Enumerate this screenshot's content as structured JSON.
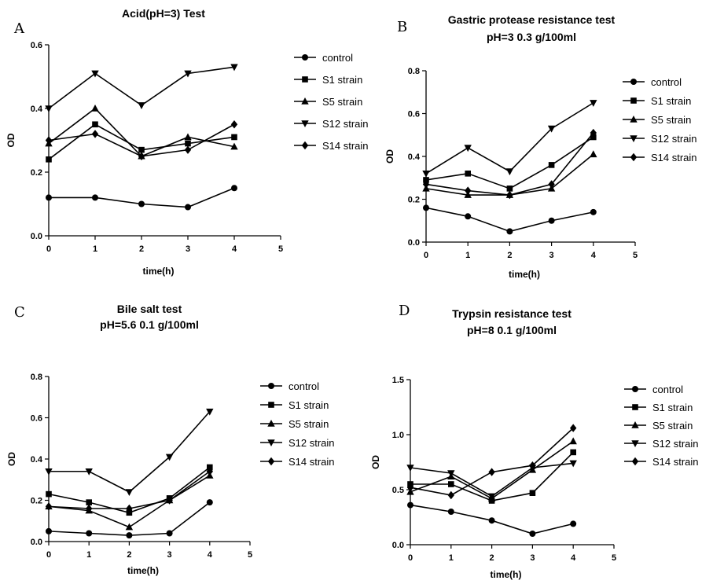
{
  "chart_data": [
    {
      "panel": "A",
      "type": "line",
      "title": [
        "Acid(pH=3) Test"
      ],
      "xlabel": "time(h)",
      "ylabel": "OD",
      "xlim": [
        0,
        5
      ],
      "ylim": [
        0,
        0.6
      ],
      "xticks": [
        0,
        1,
        2,
        3,
        4,
        5
      ],
      "xtick_labels": [
        "0",
        "1",
        "2",
        "3",
        "4",
        "5"
      ],
      "yticks": [
        0,
        0.2,
        0.4,
        0.6
      ],
      "ytick_labels": [
        "0.0",
        "0.2",
        "0.4",
        "0.6"
      ],
      "x": [
        0,
        1,
        2,
        3,
        4
      ],
      "series": [
        {
          "name": "control",
          "marker": "circle",
          "values": [
            0.12,
            0.12,
            0.1,
            0.09,
            0.15
          ]
        },
        {
          "name": "S1 strain",
          "marker": "square",
          "values": [
            0.24,
            0.35,
            0.27,
            0.29,
            0.31
          ]
        },
        {
          "name": "S5 strain",
          "marker": "triangle-up",
          "values": [
            0.29,
            0.4,
            0.25,
            0.31,
            0.28
          ]
        },
        {
          "name": "S12 strain",
          "marker": "triangle-down",
          "values": [
            0.4,
            0.51,
            0.41,
            0.51,
            0.53
          ]
        },
        {
          "name": "S14  strain",
          "marker": "diamond",
          "values": [
            0.3,
            0.32,
            0.25,
            0.27,
            0.35
          ]
        }
      ]
    },
    {
      "panel": "B",
      "type": "line",
      "title": [
        "Gastric protease resistance test",
        "pH=3 0.3 g/100ml"
      ],
      "xlabel": "time(h)",
      "ylabel": "OD",
      "xlim": [
        0,
        5
      ],
      "ylim": [
        0,
        0.8
      ],
      "xticks": [
        0,
        1,
        2,
        3,
        4,
        5
      ],
      "xtick_labels": [
        "0",
        "1",
        "2",
        "3",
        "4",
        "5"
      ],
      "yticks": [
        0,
        0.2,
        0.4,
        0.6,
        0.8
      ],
      "ytick_labels": [
        "0.0",
        "0.2",
        "0.4",
        "0.6",
        "0.8"
      ],
      "x": [
        0,
        1,
        2,
        3,
        4
      ],
      "series": [
        {
          "name": "control",
          "marker": "circle",
          "values": [
            0.16,
            0.12,
            0.05,
            0.1,
            0.14
          ]
        },
        {
          "name": "S1 strain",
          "marker": "square",
          "values": [
            0.29,
            0.32,
            0.25,
            0.36,
            0.49
          ]
        },
        {
          "name": "S5 strain",
          "marker": "triangle-up",
          "values": [
            0.25,
            0.22,
            0.22,
            0.25,
            0.41
          ]
        },
        {
          "name": "S12 strain",
          "marker": "triangle-down",
          "values": [
            0.32,
            0.44,
            0.33,
            0.53,
            0.65
          ]
        },
        {
          "name": "S14 strain",
          "marker": "diamond",
          "values": [
            0.27,
            0.24,
            0.22,
            0.27,
            0.51
          ]
        }
      ]
    },
    {
      "panel": "C",
      "type": "line",
      "title": [
        "Bile salt test",
        "pH=5.6 0.1 g/100ml"
      ],
      "xlabel": "time(h)",
      "ylabel": "OD",
      "xlim": [
        0,
        5
      ],
      "ylim": [
        0,
        0.8
      ],
      "xticks": [
        0,
        1,
        2,
        3,
        4,
        5
      ],
      "xtick_labels": [
        "0",
        "1",
        "2",
        "3",
        "4",
        "5"
      ],
      "yticks": [
        0,
        0.2,
        0.4,
        0.6,
        0.8
      ],
      "ytick_labels": [
        "0.0",
        "0.2",
        "0.4",
        "0.6",
        "0.8"
      ],
      "x": [
        0,
        1,
        2,
        3,
        4
      ],
      "series": [
        {
          "name": "control",
          "marker": "circle",
          "values": [
            0.05,
            0.04,
            0.03,
            0.04,
            0.19
          ]
        },
        {
          "name": "S1 strain",
          "marker": "square",
          "values": [
            0.23,
            0.19,
            0.14,
            0.21,
            0.36
          ]
        },
        {
          "name": "S5 strain",
          "marker": "triangle-up",
          "values": [
            0.17,
            0.15,
            0.07,
            0.2,
            0.32
          ]
        },
        {
          "name": "S12 strain",
          "marker": "triangle-down",
          "values": [
            0.34,
            0.34,
            0.24,
            0.41,
            0.63
          ]
        },
        {
          "name": "S14 strain",
          "marker": "diamond",
          "values": [
            0.17,
            0.16,
            0.16,
            0.2,
            0.34
          ]
        }
      ]
    },
    {
      "panel": "D",
      "type": "line",
      "title": [
        "Trypsin resistance test",
        "pH=8 0.1 g/100ml"
      ],
      "xlabel": "time(h)",
      "ylabel": "OD",
      "xlim": [
        0,
        5
      ],
      "ylim": [
        0,
        1.5
      ],
      "xticks": [
        0,
        1,
        2,
        3,
        4,
        5
      ],
      "xtick_labels": [
        "0",
        "1",
        "2",
        "3",
        "4",
        "5"
      ],
      "yticks": [
        0,
        0.5,
        1.0,
        1.5
      ],
      "ytick_labels": [
        "0.0",
        "0.5",
        "1.0",
        "1.5"
      ],
      "x": [
        0,
        1,
        2,
        3,
        4
      ],
      "series": [
        {
          "name": "control",
          "marker": "circle",
          "values": [
            0.36,
            0.3,
            0.22,
            0.1,
            0.19
          ]
        },
        {
          "name": "S1 strain",
          "marker": "square",
          "values": [
            0.55,
            0.55,
            0.4,
            0.47,
            0.84
          ]
        },
        {
          "name": "S5 strain",
          "marker": "triangle-up",
          "values": [
            0.48,
            0.62,
            0.42,
            0.68,
            0.94
          ]
        },
        {
          "name": "S12 strain",
          "marker": "triangle-down",
          "values": [
            0.7,
            0.65,
            0.44,
            0.7,
            0.74
          ]
        },
        {
          "name": "S14 strain",
          "marker": "diamond",
          "values": [
            0.52,
            0.45,
            0.66,
            0.72,
            1.06
          ]
        }
      ]
    }
  ]
}
